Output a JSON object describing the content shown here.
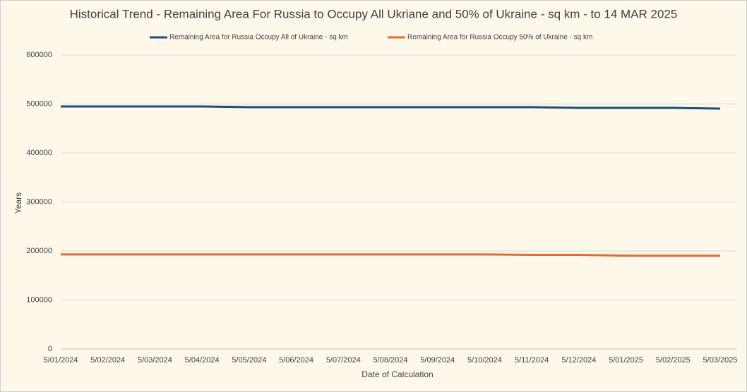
{
  "chart_data": {
    "type": "line",
    "title": "Historical Trend - Remaining Area For Russia to Occupy All Ukriane and 50% of Ukraine - sq km - to 14 MAR 2025",
    "x_label": "Date of Calculation",
    "y_label": "Years",
    "categories": [
      "5/01/2024",
      "5/02/2024",
      "5/03/2024",
      "5/04/2024",
      "5/05/2024",
      "5/06/2024",
      "5/07/2024",
      "5/08/2024",
      "5/09/2024",
      "5/10/2024",
      "5/11/2024",
      "5/12/2024",
      "5/01/2025",
      "5/02/2025",
      "5/03/2025"
    ],
    "series": [
      {
        "name": "Remaining Area for Russia Occupy All of Ukraine - sq km",
        "color": "#1f4e79",
        "values": [
          495000,
          495000,
          495000,
          495000,
          493500,
          493500,
          493500,
          493500,
          493500,
          493500,
          493500,
          492000,
          492000,
          492000,
          490500
        ]
      },
      {
        "name": "Remaining Area for Russia Occupy 50% of Ukraine - sq km",
        "color": "#e36c2c",
        "values": [
          193000,
          193000,
          193000,
          193000,
          193000,
          193000,
          193000,
          193000,
          193000,
          193000,
          192000,
          192000,
          190500,
          190500,
          190500
        ]
      }
    ],
    "ylim": [
      0,
      600000
    ],
    "yticks": [
      0,
      100000,
      200000,
      300000,
      400000,
      500000,
      600000
    ],
    "grid": true
  }
}
